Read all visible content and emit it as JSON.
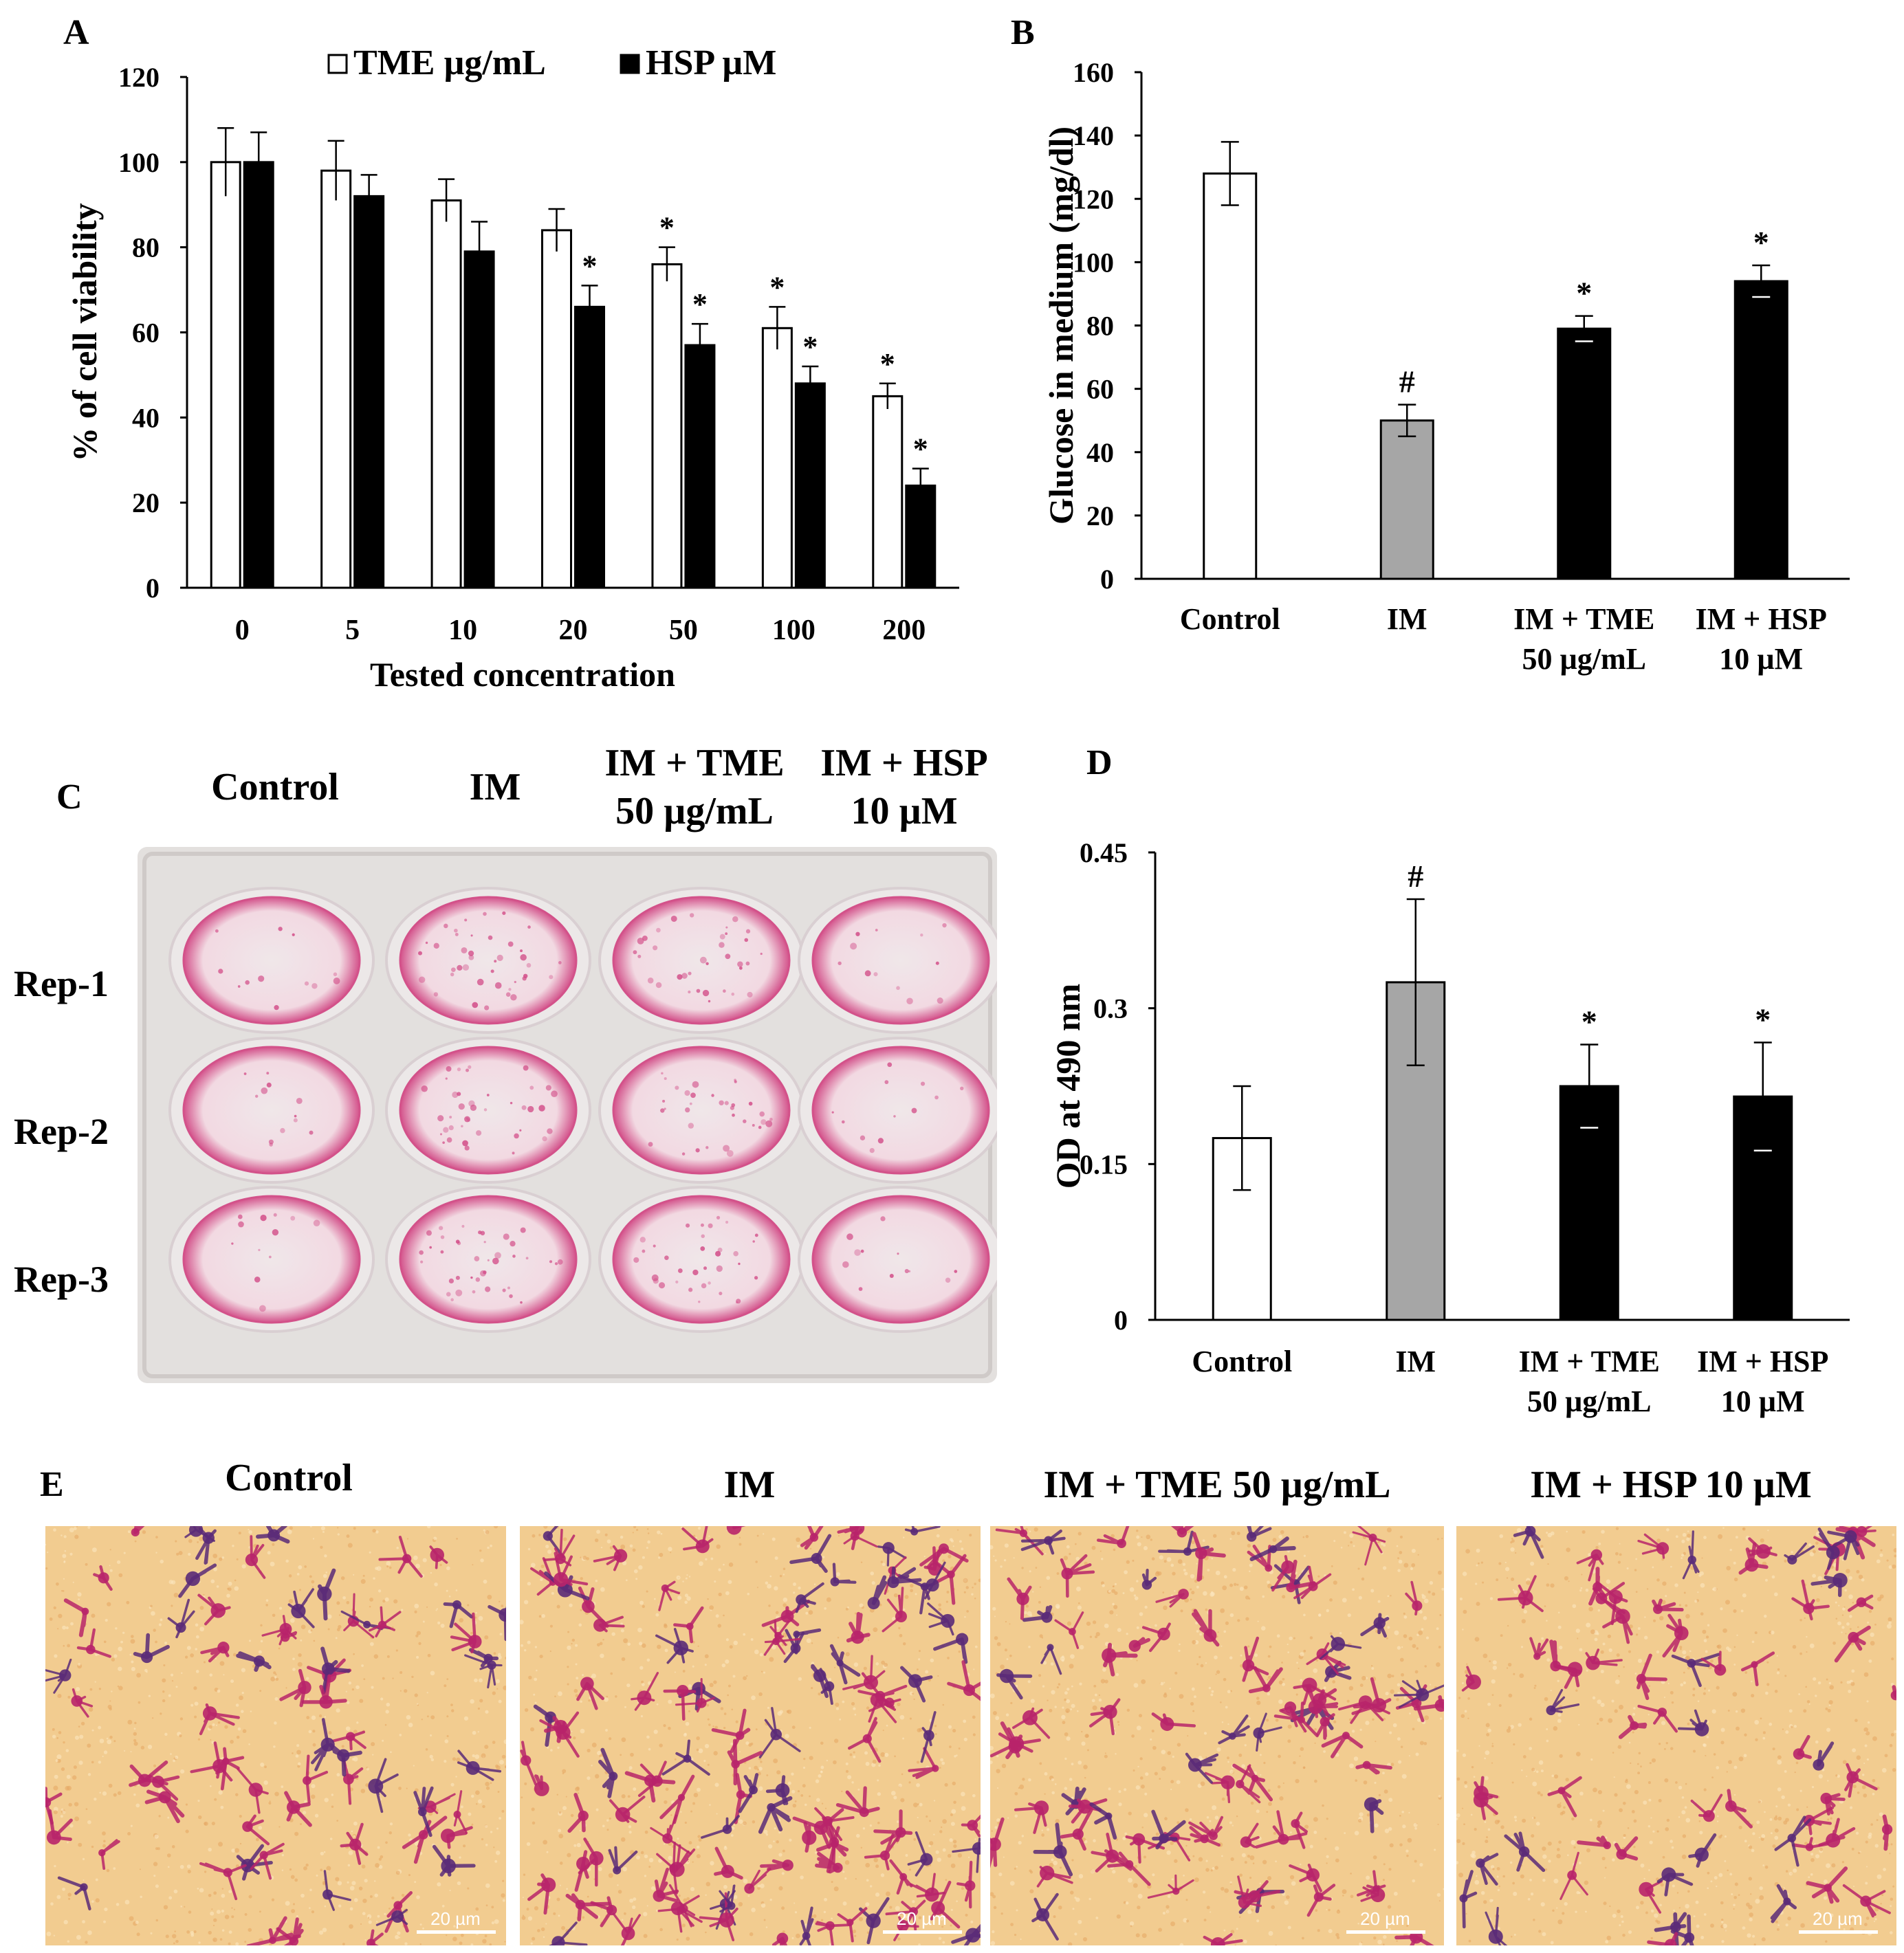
{
  "panels": {
    "a": "A",
    "b": "B",
    "c": "C",
    "d": "D",
    "e": "E"
  },
  "chart_data": [
    {
      "id": "A",
      "type": "bar",
      "xlabel": "Tested concentration",
      "ylabel": "% of cell viability",
      "ylim": [
        0,
        120
      ],
      "yticks": [
        0,
        20,
        40,
        60,
        80,
        100,
        120
      ],
      "categories": [
        "0",
        "5",
        "10",
        "20",
        "50",
        "100",
        "200"
      ],
      "legend_placement": "top-center",
      "series": [
        {
          "name": "TME µg/mL",
          "fill": "#ffffff",
          "values": [
            100,
            98,
            91,
            84,
            76,
            61,
            45
          ],
          "errors": [
            8,
            7,
            5,
            5,
            4,
            5,
            3
          ],
          "marks": [
            "",
            "",
            "",
            "",
            "*",
            "*",
            "*"
          ]
        },
        {
          "name": "HSP µM",
          "fill": "#000000",
          "values": [
            100,
            92,
            79,
            66,
            57,
            48,
            24
          ],
          "errors": [
            7,
            5,
            7,
            5,
            5,
            4,
            4
          ],
          "marks": [
            "",
            "",
            "",
            "*",
            "*",
            "*",
            "*"
          ]
        }
      ]
    },
    {
      "id": "B",
      "type": "bar",
      "ylabel": "Glucose in medium (mg/dl)",
      "ylim": [
        0,
        160
      ],
      "yticks": [
        0,
        20,
        40,
        60,
        80,
        100,
        120,
        140,
        160
      ],
      "categories": [
        [
          "Control"
        ],
        [
          "IM"
        ],
        [
          "IM + TME",
          "50 µg/mL"
        ],
        [
          "IM + HSP",
          "10 µM"
        ]
      ],
      "values": [
        128,
        50,
        79,
        94
      ],
      "errors": [
        10,
        5,
        4,
        5
      ],
      "fills": [
        "#ffffff",
        "#a6a6a6",
        "#000000",
        "#000000"
      ],
      "marks": [
        "",
        "#",
        "*",
        "*"
      ]
    },
    {
      "id": "D",
      "type": "bar",
      "ylabel": "OD at 490 nm",
      "ylim": [
        0,
        0.45
      ],
      "yticks": [
        0,
        0.15,
        0.3,
        0.45
      ],
      "categories": [
        [
          "Control"
        ],
        [
          "IM"
        ],
        [
          "IM + TME",
          "50 µg/mL"
        ],
        [
          "IM + HSP",
          "10 µM"
        ]
      ],
      "values": [
        0.175,
        0.325,
        0.225,
        0.215
      ],
      "errors": [
        0.05,
        0.08,
        0.04,
        0.052
      ],
      "fills": [
        "#ffffff",
        "#a6a6a6",
        "#000000",
        "#000000"
      ],
      "marks": [
        "",
        "#",
        "*",
        "*"
      ]
    }
  ],
  "panel_c": {
    "headers": [
      [
        "Control"
      ],
      [
        "IM"
      ],
      [
        "IM + TME",
        "50 µg/mL"
      ],
      [
        "IM + HSP",
        "10 µM"
      ]
    ],
    "rows": [
      "Rep-1",
      "Rep-2",
      "Rep-3"
    ],
    "colors": {
      "plate": "#e3e0de",
      "well": "#f3d9e2",
      "stain": "#d24a86"
    }
  },
  "panel_e": {
    "headers": [
      "Control",
      "IM",
      "IM + TME 50 µg/mL",
      "IM + HSP 10 µM"
    ],
    "scale_label": "20 µm",
    "colors": {
      "background": "#f2cc90",
      "cells": "#b8246a",
      "dark_cells": "#5a2a78"
    }
  }
}
